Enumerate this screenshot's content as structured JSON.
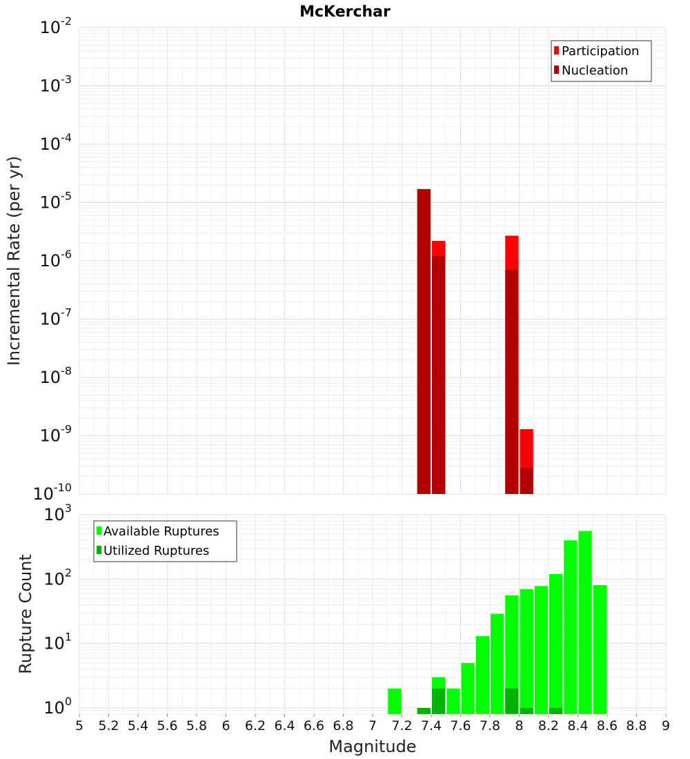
{
  "chart_data": [
    {
      "type": "bar",
      "title": "McKerchar",
      "xlabel": "",
      "ylabel": "Incremental Rate (per yr)",
      "yscale": "log",
      "ylim": [
        1e-10,
        0.01
      ],
      "xlim": [
        5,
        9
      ],
      "y_ticks": [
        {
          "base": "10",
          "exp": "-10"
        },
        {
          "base": "10",
          "exp": "-9"
        },
        {
          "base": "10",
          "exp": "-8"
        },
        {
          "base": "10",
          "exp": "-7"
        },
        {
          "base": "10",
          "exp": "-6"
        },
        {
          "base": "10",
          "exp": "-5"
        },
        {
          "base": "10",
          "exp": "-4"
        },
        {
          "base": "10",
          "exp": "-3"
        },
        {
          "base": "10",
          "exp": "-2"
        }
      ],
      "legend_position": "top-right",
      "bar_width": 0.1,
      "series": [
        {
          "name": "Participation",
          "color": "#ff0000",
          "points": [
            {
              "x": 7.35,
              "y": 1.7e-05
            },
            {
              "x": 7.45,
              "y": 2.2e-06
            },
            {
              "x": 7.95,
              "y": 2.7e-06
            },
            {
              "x": 8.05,
              "y": 1.3e-09
            }
          ]
        },
        {
          "name": "Nucleation",
          "color": "#b30000",
          "points": [
            {
              "x": 7.35,
              "y": 1.7e-05
            },
            {
              "x": 7.45,
              "y": 1.2e-06
            },
            {
              "x": 7.95,
              "y": 7e-07
            },
            {
              "x": 8.05,
              "y": 2.8e-10
            }
          ]
        }
      ]
    },
    {
      "type": "bar",
      "title": "",
      "xlabel": "Magnitude",
      "ylabel": "Rupture Count",
      "yscale": "log",
      "ylim": [
        0.8,
        1000
      ],
      "xlim": [
        5,
        9
      ],
      "x_ticks": [
        "5",
        "5.2",
        "5.4",
        "5.6",
        "5.8",
        "6",
        "6.2",
        "6.4",
        "6.6",
        "6.8",
        "7",
        "7.2",
        "7.4",
        "7.6",
        "7.8",
        "8",
        "8.2",
        "8.4",
        "8.6",
        "8.8",
        "9"
      ],
      "y_ticks": [
        {
          "base": "10",
          "exp": "0"
        },
        {
          "base": "10",
          "exp": "1"
        },
        {
          "base": "10",
          "exp": "2"
        },
        {
          "base": "10",
          "exp": "3"
        }
      ],
      "legend_position": "top-left",
      "bar_width": 0.1,
      "series": [
        {
          "name": "Available Ruptures",
          "color": "#00ff00",
          "points": [
            {
              "x": 7.15,
              "y": 2
            },
            {
              "x": 7.35,
              "y": 1
            },
            {
              "x": 7.45,
              "y": 3
            },
            {
              "x": 7.55,
              "y": 2
            },
            {
              "x": 7.65,
              "y": 5
            },
            {
              "x": 7.75,
              "y": 13
            },
            {
              "x": 7.85,
              "y": 29
            },
            {
              "x": 7.95,
              "y": 56
            },
            {
              "x": 8.05,
              "y": 70
            },
            {
              "x": 8.15,
              "y": 78
            },
            {
              "x": 8.25,
              "y": 120
            },
            {
              "x": 8.35,
              "y": 400
            },
            {
              "x": 8.45,
              "y": 560
            },
            {
              "x": 8.55,
              "y": 81
            }
          ]
        },
        {
          "name": "Utilized Ruptures",
          "color": "#00b300",
          "points": [
            {
              "x": 7.35,
              "y": 1
            },
            {
              "x": 7.45,
              "y": 2
            },
            {
              "x": 7.95,
              "y": 2
            },
            {
              "x": 8.05,
              "y": 1
            },
            {
              "x": 8.25,
              "y": 1
            }
          ]
        }
      ]
    }
  ]
}
